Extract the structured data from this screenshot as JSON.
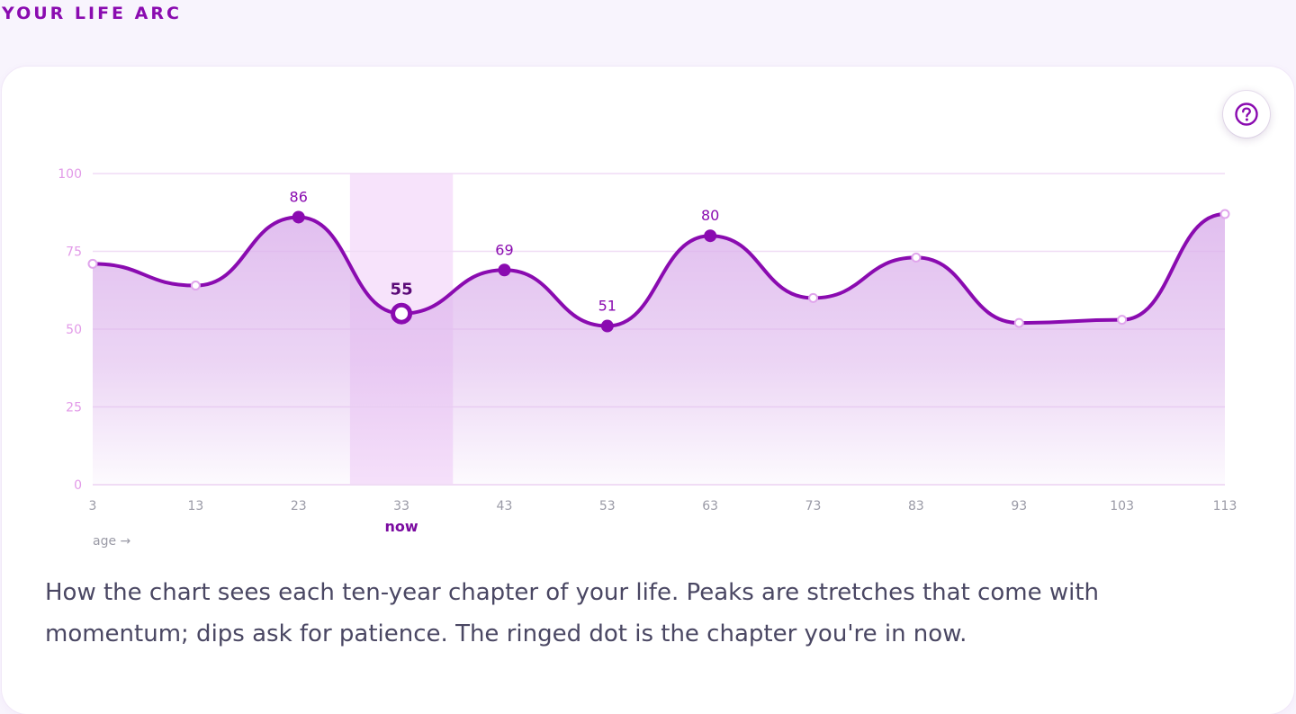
{
  "header": {
    "title": "YOUR LIFE ARC"
  },
  "help": {
    "icon": "help-circle-icon"
  },
  "colors": {
    "accent": "#8a0bb0",
    "line": "#8a0bb0",
    "fill": "#dcb3ec",
    "grid": "#f0dcf5",
    "axis_text": "#e29ae8",
    "tick_text": "#9a9aa6",
    "now_band": "#f7e3fb",
    "minor_point": "#e0a5ec"
  },
  "chart_data": {
    "type": "line",
    "x": [
      3,
      13,
      23,
      33,
      43,
      53,
      63,
      73,
      83,
      93,
      103,
      113
    ],
    "values": [
      71,
      64,
      86,
      55,
      69,
      51,
      80,
      60,
      73,
      52,
      53,
      87
    ],
    "labeled": [
      false,
      false,
      true,
      true,
      true,
      true,
      true,
      false,
      false,
      false,
      false,
      false
    ],
    "current_index": 3,
    "current_label": "now",
    "ylim": [
      0,
      100
    ],
    "yticks": [
      0,
      25,
      50,
      75,
      100
    ],
    "xlabel": "age →",
    "ylabel": "",
    "grid": true,
    "smooth": true,
    "area_fill": true
  },
  "caption": "How the chart sees each ten-year chapter of your life. Peaks are stretches that come with momentum; dips ask for patience. The ringed dot is the chapter you're in now."
}
